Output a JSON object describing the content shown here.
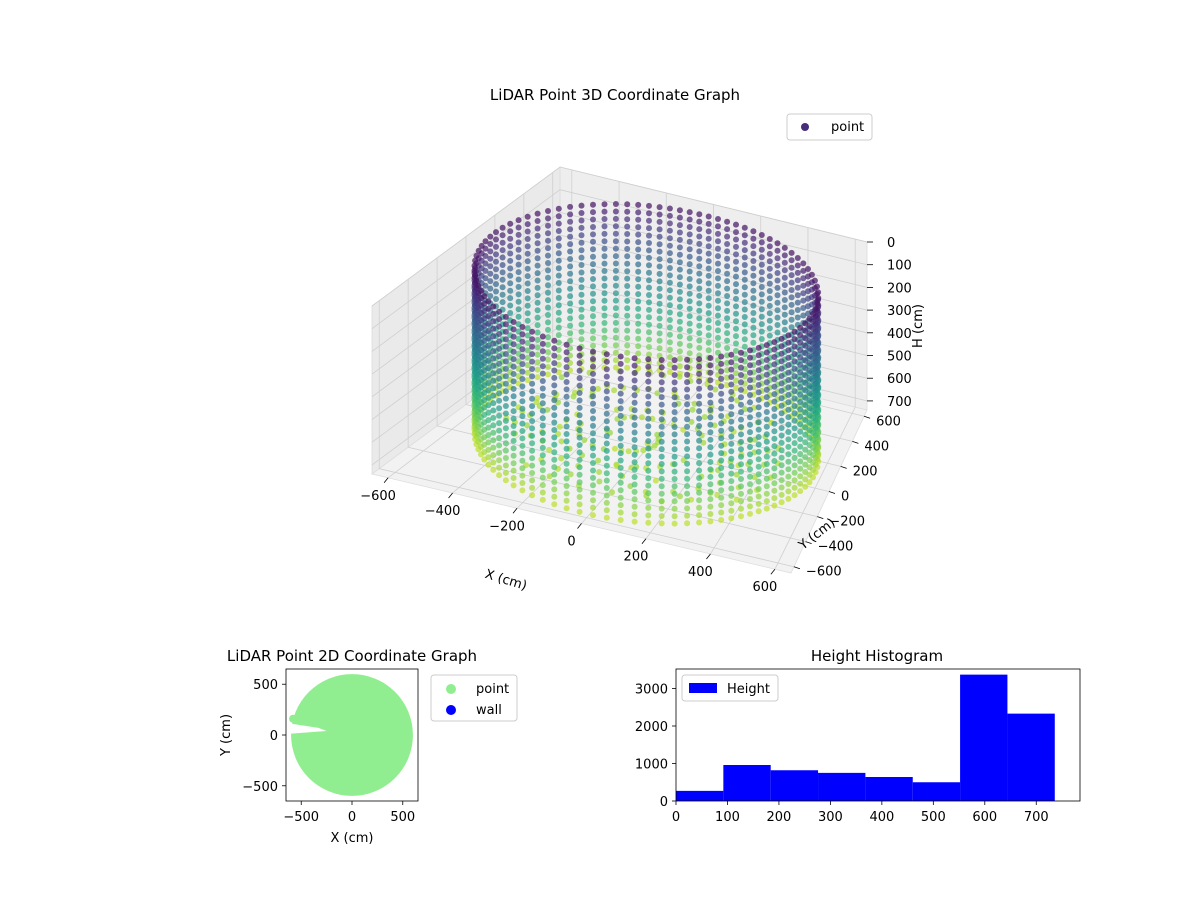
{
  "chart_data": [
    {
      "type": "scatter3d",
      "title": "LiDAR Point 3D Coordinate Graph",
      "xlabel": "X (cm)",
      "ylabel": "Y (cm)",
      "zlabel": "H (cm)",
      "legend": {
        "entries": [
          "point"
        ],
        "placement": "top-right"
      },
      "x_ticks": [
        "−600",
        "−400",
        "−200",
        "0",
        "200",
        "400",
        "600"
      ],
      "y_ticks": [
        "−600",
        "−400",
        "−200",
        "0",
        "200",
        "400",
        "600"
      ],
      "z_ticks": [
        "0",
        "100",
        "200",
        "300",
        "400",
        "500",
        "600",
        "700"
      ],
      "xlim": [
        -650,
        650
      ],
      "ylim": [
        -650,
        650
      ],
      "zlim": [
        0,
        740
      ],
      "z_inverted": true,
      "colormap": "viridis",
      "wall_radius": 580,
      "wall_height": [
        0,
        720
      ],
      "grid": true
    },
    {
      "type": "scatter",
      "title": "LiDAR Point 2D Coordinate Graph",
      "xlabel": "X (cm)",
      "ylabel": "Y (cm)",
      "x_ticks": [
        "−500",
        "0",
        "500"
      ],
      "y_ticks": [
        "500",
        "0",
        "−500"
      ],
      "xlim": [
        -650,
        650
      ],
      "ylim": [
        -650,
        650
      ],
      "legend": {
        "entries": [
          "point",
          "wall"
        ],
        "placement": "outside-right"
      },
      "series": [
        {
          "name": "point",
          "color": "#90ee90",
          "region": "disc",
          "radius": 600
        },
        {
          "name": "wall",
          "color": "#0000ff"
        }
      ]
    },
    {
      "type": "bar",
      "title": "Height Histogram",
      "x_ticks": [
        "0",
        "100",
        "200",
        "300",
        "400",
        "500",
        "600",
        "700"
      ],
      "y_ticks": [
        "0",
        "1000",
        "2000",
        "3000"
      ],
      "xlim": [
        0,
        785
      ],
      "ylim": [
        0,
        3520
      ],
      "legend": {
        "entries": [
          "Height"
        ],
        "placement": "top-left"
      },
      "bin_edges": [
        0,
        92,
        184,
        276,
        368,
        460,
        552,
        644,
        736
      ],
      "series": [
        {
          "name": "Height",
          "color": "#0000ff",
          "values": [
            270,
            960,
            820,
            750,
            640,
            500,
            3370,
            2330
          ]
        }
      ]
    }
  ]
}
